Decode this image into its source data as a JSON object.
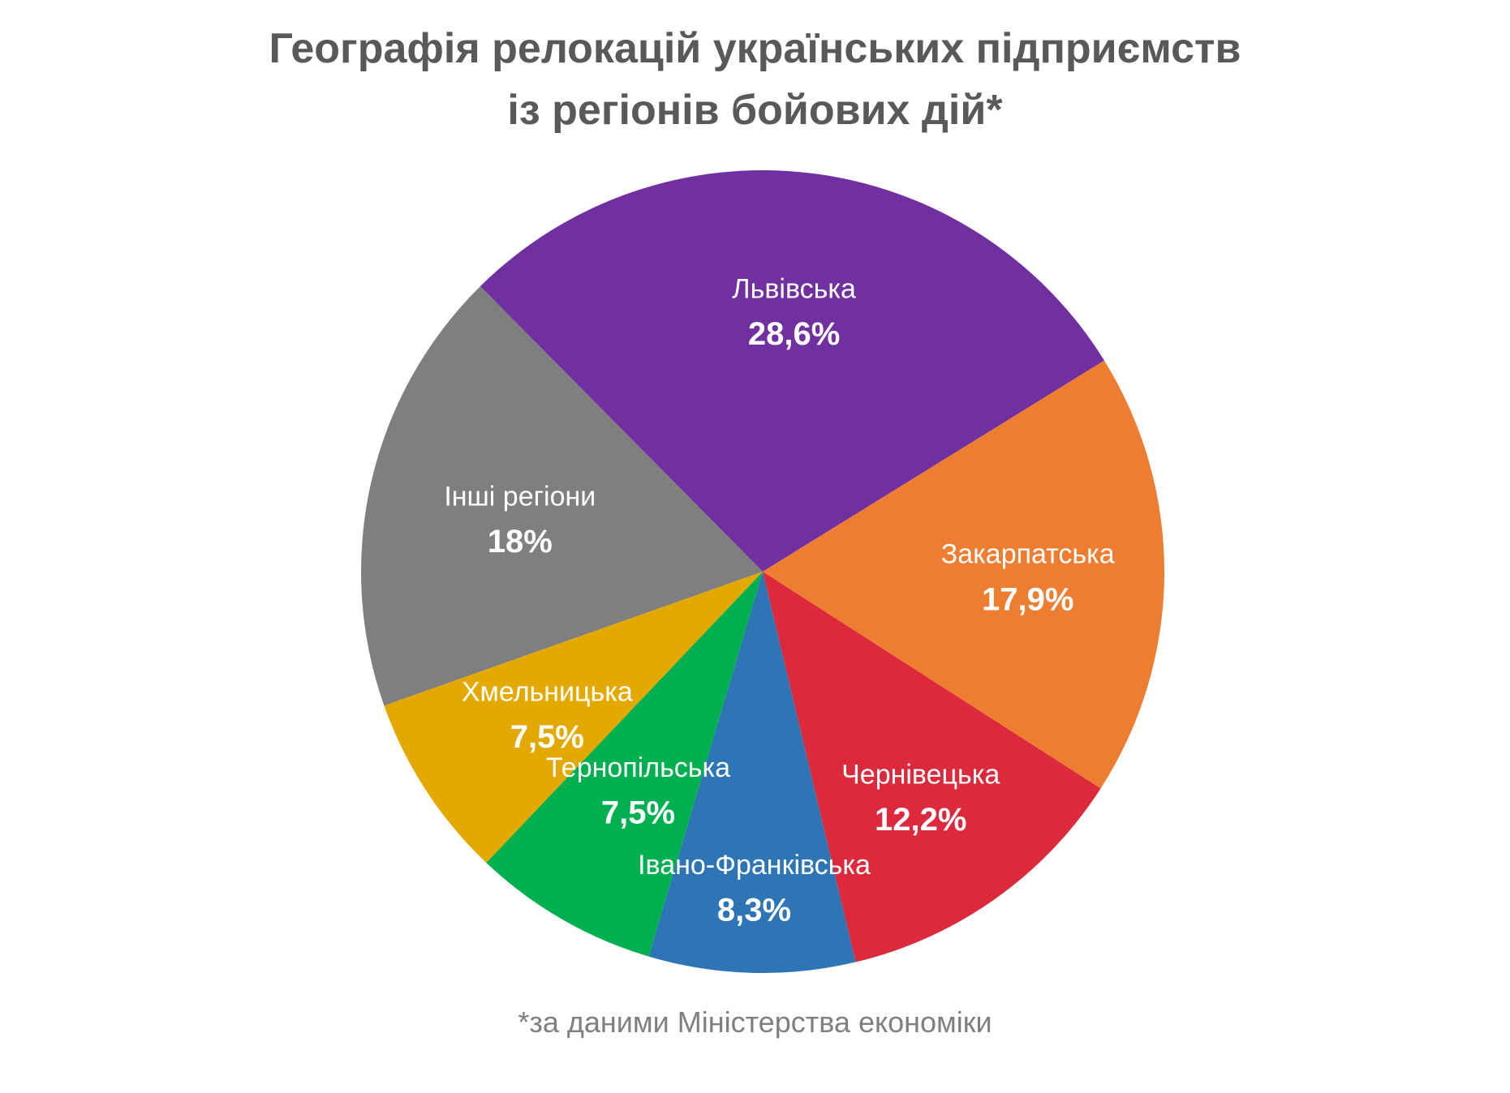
{
  "chart_data": {
    "type": "pie",
    "title_lines": [
      "Географія релокацій українських підприємств",
      "із регіонів бойових дій*"
    ],
    "slices": [
      {
        "label": "Львівська",
        "value": 28.6,
        "value_label": "28,6%",
        "color": "#7030a0"
      },
      {
        "label": "Закарпатська",
        "value": 17.9,
        "value_label": "17,9%",
        "color": "#ed7d31"
      },
      {
        "label": "Чернівецька",
        "value": 12.2,
        "value_label": "12,2%",
        "color": "#dc2a3c"
      },
      {
        "label": "Івано-Франківська",
        "value": 8.3,
        "value_label": "8,3%",
        "color": "#2e75b6"
      },
      {
        "label": "Тернопільська",
        "value": 7.5,
        "value_label": "7,5%",
        "color": "#00b050"
      },
      {
        "label": "Хмельницька",
        "value": 7.5,
        "value_label": "7,5%",
        "color": "#e3a900"
      },
      {
        "label": "Інші регіони",
        "value": 18,
        "value_label": "18%",
        "color": "#7f7f7f"
      }
    ],
    "start": "top-left, clockwise",
    "legend": "none"
  },
  "footnote": "*за даними Міністерства економіки"
}
